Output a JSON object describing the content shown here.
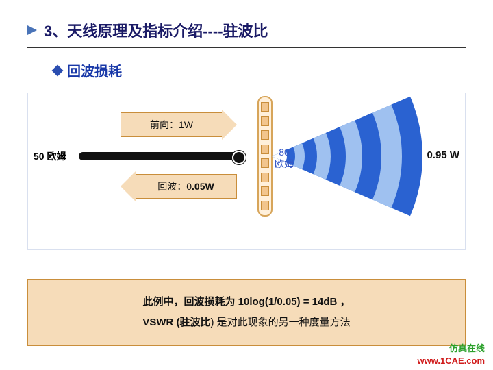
{
  "colors": {
    "title_text": "#1a1a66",
    "bullet_arrow": "#4a74b8",
    "rule": "#333333",
    "subtitle_text": "#1838a8",
    "diamond_fill": "#2a4db0",
    "diagram_border": "#d9e0ef",
    "forward_fill": "#f6dcb9",
    "forward_stroke": "#c98e3b",
    "return_fill": "#f6dcb9",
    "return_stroke": "#c98e3b",
    "arrow_text": "#111111",
    "cable": "#111111",
    "antenna_box_fill": "#fff0db",
    "antenna_box_stroke": "#d7a55a",
    "antenna_seg_fill": "#f2c58d",
    "antenna_seg_stroke": "#c98e3b",
    "impedance_text": "#3557c6",
    "wave_dark": "#2a62d1",
    "wave_light": "#9fc1f0",
    "wave_white": "#ffffff",
    "output_text": "#111111",
    "caption_fill": "#f6dcb9",
    "caption_stroke": "#c98e3b",
    "caption_text": "#111111",
    "brand_text": "#2aa02a",
    "url_text": "#d01c1c"
  },
  "header": {
    "title": "3、天线原理及指标介绍----驻波比"
  },
  "subheader": {
    "text": "回波损耗"
  },
  "diagram": {
    "forward_label": "前向：1W",
    "return_label_prefix": "回波：0",
    "return_label_bold": ".05W",
    "cable_impedance": "50  欧姆",
    "antenna_impedance_value": "80",
    "antenna_impedance_unit": "欧姆",
    "output_power": "0.95 W",
    "antenna_segments": 8
  },
  "caption": {
    "line1_prefix": "此例中，回波损耗为  ",
    "line1_formula": "10log(1/0.05) = 14dB",
    "line1_suffix": " ，",
    "line2_prefix": "VSWR (",
    "line2_mid": "驻波比",
    "line2_suffix": ") 是对此现象的另一种度量方法"
  },
  "footer": {
    "brand": "仿真在线",
    "url": "www.1CAE.com"
  }
}
